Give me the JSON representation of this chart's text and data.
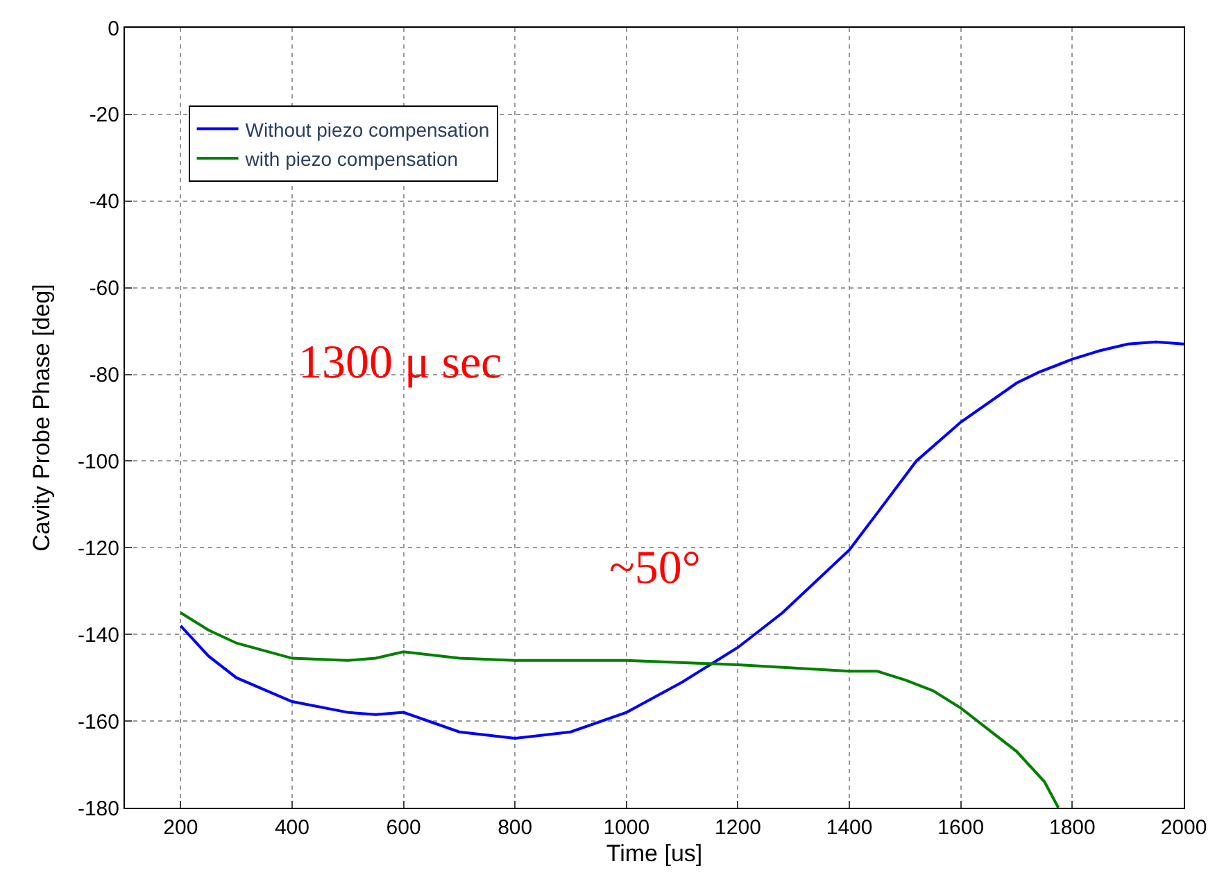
{
  "chart_data": {
    "type": "line",
    "xlabel": "Time [us]",
    "ylabel": "Cavity Probe Phase [deg]",
    "xlim": [
      100,
      2000
    ],
    "xticks": [
      200,
      400,
      600,
      800,
      1000,
      1200,
      1400,
      1600,
      1800,
      2000
    ],
    "ylim": [
      -180,
      0
    ],
    "yticks": [
      -180,
      -160,
      -140,
      -120,
      -100,
      -80,
      -60,
      -40,
      -20,
      0
    ],
    "grid": true,
    "legend": "top left",
    "line_style": "solid",
    "marker": "none",
    "series": [
      {
        "name": "Without piezo compensation",
        "color": "#0000ff",
        "x": [
          200,
          250,
          300,
          400,
          500,
          550,
          600,
          700,
          800,
          900,
          1000,
          1100,
          1150,
          1200,
          1280,
          1400,
          1450,
          1520,
          1600,
          1700,
          1740,
          1800,
          1850,
          1900,
          1950,
          2000
        ],
        "values": [
          -138,
          -145,
          -150,
          -155.5,
          -158,
          -158.5,
          -158,
          -162.5,
          -164,
          -162.5,
          -158,
          -151,
          -147,
          -143,
          -135,
          -120.5,
          -112,
          -100,
          -91,
          -82,
          -79.5,
          -76.5,
          -74.5,
          -73,
          -72.5,
          -73
        ]
      },
      {
        "name": "with piezo compensation",
        "color": "#008000",
        "x": [
          200,
          250,
          300,
          400,
          500,
          550,
          600,
          700,
          800,
          1000,
          1200,
          1400,
          1450,
          1500,
          1550,
          1600,
          1650,
          1700,
          1750,
          1775
        ],
        "values": [
          -135,
          -139,
          -142,
          -145.5,
          -146,
          -145.5,
          -144,
          -145.5,
          -146,
          -146,
          -147,
          -148.5,
          -148.5,
          -150.5,
          -153,
          -157,
          -162,
          -167,
          -174,
          -180
        ]
      }
    ],
    "annotations": [
      "1300 μ sec",
      "~50°"
    ]
  }
}
